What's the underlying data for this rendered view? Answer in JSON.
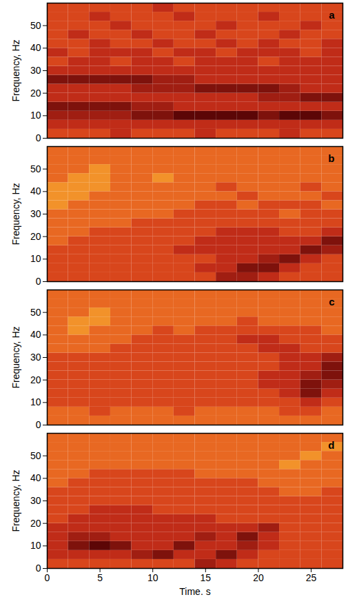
{
  "chart_data": [
    {
      "type": "heatmap",
      "title": "a",
      "y_label": "Frequency, Hz",
      "xlim": [
        0,
        28
      ],
      "ylim": [
        0,
        60
      ],
      "yticks": [
        0,
        10,
        20,
        30,
        40,
        50
      ],
      "tick_labels": "y",
      "x_edges": [
        0,
        2,
        4,
        6,
        8,
        10,
        12,
        14,
        16,
        18,
        20,
        22,
        24,
        26,
        28
      ],
      "y_edges": [
        0,
        4,
        8,
        12,
        16,
        20,
        24,
        28,
        32,
        36,
        40,
        44,
        48,
        52,
        56,
        60
      ],
      "zlim": [
        0,
        9
      ],
      "cells": [
        [
          5,
          5,
          5,
          4,
          5,
          5,
          5,
          4,
          5,
          5,
          5,
          4,
          5,
          5
        ],
        [
          4,
          4,
          4,
          4,
          4,
          4,
          4,
          4,
          4,
          4,
          4,
          4,
          4,
          4
        ],
        [
          3,
          3,
          3,
          3,
          2,
          2,
          1,
          1,
          1,
          1,
          2,
          1,
          1,
          2
        ],
        [
          2,
          2,
          2,
          2,
          3,
          3,
          4,
          4,
          4,
          4,
          4,
          4,
          4,
          4
        ],
        [
          4,
          4,
          4,
          4,
          4,
          4,
          4,
          4,
          4,
          4,
          3,
          3,
          2,
          2
        ],
        [
          4,
          4,
          4,
          4,
          3,
          3,
          3,
          2,
          2,
          2,
          2,
          3,
          4,
          4
        ],
        [
          2,
          2,
          2,
          2,
          2,
          3,
          3,
          4,
          4,
          4,
          4,
          4,
          4,
          4
        ],
        [
          4,
          4,
          4,
          4,
          4,
          4,
          4,
          4,
          4,
          4,
          4,
          4,
          4,
          4
        ],
        [
          5,
          4,
          4,
          5,
          4,
          4,
          5,
          4,
          4,
          4,
          5,
          4,
          4,
          4
        ],
        [
          4,
          5,
          4,
          4,
          4,
          5,
          4,
          4,
          5,
          4,
          4,
          4,
          5,
          4
        ],
        [
          5,
          5,
          4,
          5,
          5,
          4,
          5,
          5,
          4,
          5,
          4,
          5,
          5,
          4
        ],
        [
          5,
          4,
          5,
          5,
          4,
          5,
          5,
          4,
          5,
          5,
          5,
          4,
          5,
          5
        ],
        [
          5,
          5,
          5,
          4,
          5,
          5,
          5,
          5,
          4,
          5,
          5,
          5,
          4,
          5
        ],
        [
          5,
          5,
          4,
          5,
          5,
          5,
          4,
          5,
          5,
          5,
          4,
          5,
          5,
          5
        ],
        [
          5,
          5,
          5,
          5,
          5,
          4,
          5,
          5,
          5,
          5,
          5,
          5,
          5,
          5
        ]
      ]
    },
    {
      "type": "heatmap",
      "title": "b",
      "y_label": "Frequency, Hz",
      "xlim": [
        0,
        28
      ],
      "ylim": [
        0,
        60
      ],
      "yticks": [
        0,
        10,
        20,
        30,
        40,
        50
      ],
      "tick_labels": "y",
      "x_edges": [
        0,
        2,
        4,
        6,
        8,
        10,
        12,
        14,
        16,
        18,
        20,
        22,
        24,
        26,
        28
      ],
      "y_edges": [
        0,
        4,
        8,
        12,
        16,
        20,
        24,
        28,
        32,
        36,
        40,
        44,
        48,
        52,
        56,
        60
      ],
      "zlim": [
        0,
        9
      ],
      "cells": [
        [
          5,
          5,
          5,
          5,
          5,
          5,
          5,
          5,
          3,
          3,
          4,
          5,
          5,
          5
        ],
        [
          5,
          5,
          5,
          5,
          5,
          5,
          5,
          4,
          4,
          2,
          2,
          4,
          5,
          5
        ],
        [
          5,
          5,
          5,
          5,
          5,
          5,
          5,
          5,
          4,
          4,
          3,
          2,
          4,
          5
        ],
        [
          5,
          5,
          5,
          5,
          5,
          5,
          4,
          4,
          4,
          4,
          4,
          4,
          2,
          3
        ],
        [
          6,
          5,
          5,
          5,
          5,
          5,
          5,
          4,
          4,
          4,
          4,
          4,
          4,
          2
        ],
        [
          6,
          6,
          5,
          5,
          5,
          5,
          5,
          5,
          4,
          4,
          4,
          5,
          5,
          4
        ],
        [
          6,
          6,
          6,
          6,
          5,
          5,
          5,
          5,
          5,
          5,
          5,
          5,
          5,
          5
        ],
        [
          6,
          6,
          6,
          6,
          6,
          6,
          5,
          5,
          5,
          5,
          5,
          6,
          5,
          5
        ],
        [
          7,
          6,
          6,
          6,
          6,
          6,
          6,
          5,
          5,
          6,
          5,
          5,
          5,
          6
        ],
        [
          7,
          7,
          6,
          6,
          6,
          6,
          6,
          6,
          6,
          5,
          6,
          6,
          6,
          5
        ],
        [
          7,
          7,
          7,
          6,
          6,
          6,
          6,
          6,
          5,
          6,
          6,
          6,
          5,
          6
        ],
        [
          6,
          7,
          7,
          6,
          6,
          7,
          6,
          6,
          6,
          6,
          6,
          6,
          6,
          6
        ],
        [
          6,
          6,
          7,
          6,
          6,
          6,
          6,
          6,
          6,
          6,
          6,
          6,
          6,
          6
        ],
        [
          6,
          6,
          6,
          6,
          6,
          6,
          6,
          6,
          6,
          6,
          6,
          6,
          6,
          6
        ],
        [
          6,
          6,
          6,
          6,
          6,
          6,
          6,
          6,
          6,
          6,
          6,
          6,
          6,
          6
        ]
      ]
    },
    {
      "type": "heatmap",
      "title": "c",
      "y_label": "Frequency, Hz",
      "xlim": [
        0,
        28
      ],
      "ylim": [
        0,
        60
      ],
      "yticks": [
        0,
        10,
        20,
        30,
        40,
        50
      ],
      "tick_labels": "y",
      "x_edges": [
        0,
        2,
        4,
        6,
        8,
        10,
        12,
        14,
        16,
        18,
        20,
        22,
        24,
        26,
        28
      ],
      "y_edges": [
        0,
        4,
        8,
        12,
        16,
        20,
        24,
        28,
        32,
        36,
        40,
        44,
        48,
        52,
        56,
        60
      ],
      "zlim": [
        0,
        9
      ],
      "cells": [
        [
          6,
          6,
          6,
          6,
          6,
          6,
          6,
          6,
          6,
          6,
          6,
          6,
          6,
          6
        ],
        [
          6,
          6,
          5,
          6,
          6,
          6,
          5,
          6,
          6,
          6,
          6,
          5,
          5,
          6
        ],
        [
          5,
          5,
          5,
          5,
          5,
          5,
          5,
          5,
          5,
          5,
          5,
          5,
          4,
          5
        ],
        [
          5,
          5,
          5,
          5,
          5,
          5,
          5,
          5,
          5,
          5,
          5,
          4,
          2,
          4
        ],
        [
          5,
          5,
          5,
          5,
          5,
          5,
          5,
          5,
          5,
          5,
          4,
          4,
          2,
          3
        ],
        [
          5,
          5,
          5,
          5,
          5,
          5,
          5,
          5,
          5,
          5,
          4,
          4,
          3,
          2
        ],
        [
          5,
          5,
          5,
          5,
          5,
          5,
          5,
          5,
          5,
          5,
          5,
          4,
          4,
          2
        ],
        [
          5,
          5,
          5,
          5,
          5,
          5,
          5,
          5,
          5,
          5,
          5,
          4,
          4,
          3
        ],
        [
          6,
          6,
          6,
          5,
          5,
          5,
          5,
          5,
          5,
          5,
          4,
          4,
          5,
          5
        ],
        [
          6,
          6,
          6,
          6,
          5,
          5,
          5,
          5,
          5,
          4,
          4,
          5,
          5,
          5
        ],
        [
          6,
          7,
          6,
          6,
          6,
          5,
          6,
          5,
          5,
          5,
          5,
          5,
          5,
          6
        ],
        [
          6,
          7,
          7,
          6,
          6,
          6,
          6,
          6,
          6,
          5,
          6,
          6,
          6,
          6
        ],
        [
          6,
          6,
          7,
          6,
          6,
          6,
          6,
          6,
          6,
          6,
          6,
          6,
          6,
          6
        ],
        [
          6,
          6,
          6,
          6,
          6,
          6,
          6,
          6,
          6,
          6,
          6,
          6,
          6,
          6
        ],
        [
          6,
          6,
          6,
          6,
          6,
          6,
          6,
          6,
          6,
          6,
          6,
          6,
          6,
          6
        ]
      ]
    },
    {
      "type": "heatmap",
      "title": "d",
      "x_label": "Time. s",
      "y_label": "Frequency, Hz",
      "xlim": [
        0,
        28
      ],
      "ylim": [
        0,
        60
      ],
      "xticks": [
        0,
        5,
        10,
        15,
        20,
        25
      ],
      "yticks": [
        0,
        10,
        20,
        30,
        40,
        50
      ],
      "x_edges": [
        0,
        2,
        4,
        6,
        8,
        10,
        12,
        14,
        16,
        18,
        20,
        22,
        24,
        26,
        28
      ],
      "y_edges": [
        0,
        4,
        8,
        12,
        16,
        20,
        24,
        28,
        32,
        36,
        40,
        44,
        48,
        52,
        56,
        60
      ],
      "zlim": [
        0,
        9
      ],
      "cells": [
        [
          5,
          5,
          5,
          5,
          5,
          5,
          5,
          3,
          4,
          5,
          5,
          5,
          5,
          5
        ],
        [
          4,
          4,
          4,
          4,
          3,
          2,
          4,
          4,
          2,
          4,
          5,
          5,
          5,
          5
        ],
        [
          4,
          2,
          1,
          2,
          4,
          4,
          2,
          4,
          4,
          3,
          4,
          5,
          5,
          5
        ],
        [
          4,
          3,
          3,
          4,
          4,
          4,
          4,
          3,
          4,
          2,
          4,
          5,
          5,
          5
        ],
        [
          4,
          4,
          4,
          4,
          4,
          4,
          4,
          4,
          4,
          4,
          3,
          5,
          5,
          5
        ],
        [
          5,
          4,
          4,
          4,
          4,
          4,
          4,
          4,
          5,
          5,
          5,
          5,
          5,
          5
        ],
        [
          5,
          5,
          4,
          4,
          4,
          5,
          5,
          5,
          5,
          5,
          5,
          5,
          5,
          5
        ],
        [
          5,
          5,
          5,
          5,
          5,
          5,
          5,
          5,
          5,
          5,
          5,
          5,
          5,
          5
        ],
        [
          5,
          5,
          5,
          5,
          5,
          5,
          5,
          5,
          5,
          5,
          5,
          6,
          6,
          5
        ],
        [
          6,
          5,
          5,
          5,
          5,
          5,
          5,
          5,
          5,
          5,
          6,
          6,
          6,
          6
        ],
        [
          6,
          6,
          5,
          5,
          5,
          5,
          5,
          6,
          6,
          6,
          6,
          6,
          6,
          6
        ],
        [
          6,
          6,
          6,
          6,
          6,
          6,
          6,
          6,
          6,
          6,
          6,
          7,
          6,
          6
        ],
        [
          6,
          6,
          6,
          6,
          6,
          6,
          6,
          6,
          6,
          6,
          6,
          6,
          7,
          6
        ],
        [
          6,
          6,
          6,
          6,
          6,
          6,
          6,
          6,
          6,
          6,
          6,
          6,
          6,
          7
        ],
        [
          6,
          6,
          6,
          6,
          6,
          6,
          6,
          6,
          6,
          6,
          6,
          6,
          6,
          6
        ]
      ]
    }
  ]
}
